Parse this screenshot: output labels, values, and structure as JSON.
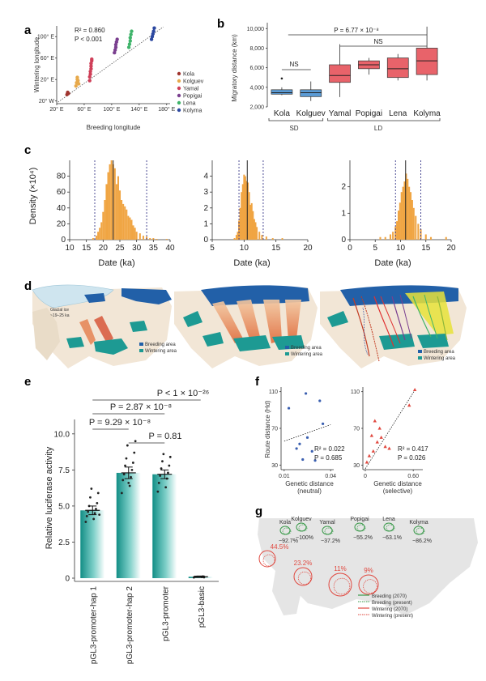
{
  "colors": {
    "Kola": "#a0342e",
    "Kolguev": "#e7a94b",
    "Yamal": "#cf3f58",
    "Popigai": "#7a3f8f",
    "Lena": "#3fb46a",
    "Kolyma": "#2c48a0",
    "sd_box": "#5b9bd5",
    "ld_box": "#e8636a",
    "hist": "#f0a543",
    "land": "#f2e6d6",
    "breed": "#2260a8",
    "winter": "#1d9a93",
    "ice": "#cfe5ef",
    "bar": "#1aa39a"
  },
  "chart_data": [
    {
      "id": "a",
      "label": "a",
      "type": "scatter",
      "xlabel": "Breeding longitude",
      "ylabel": "Wintering longitude",
      "xticks": [
        "20° E",
        "60° E",
        "100° E",
        "140° E",
        "180° E"
      ],
      "xlim": [
        20,
        185
      ],
      "yticks": [
        "20° W",
        "20° E",
        "60° E",
        "100° E"
      ],
      "ylim": [
        -25,
        120
      ],
      "r2_label": "R² = 0.860",
      "p_label": "P < 0.001",
      "legend": [
        "Kola",
        "Kolguev",
        "Yamal",
        "Popigai",
        "Lena",
        "Kolyma"
      ],
      "series": [
        {
          "name": "Kola",
          "x": [
            35,
            36,
            37
          ],
          "y": [
            -8,
            -4,
            -6
          ]
        },
        {
          "name": "Kolguev",
          "x": [
            48,
            49,
            50,
            50,
            51,
            52
          ],
          "y": [
            8,
            14,
            20,
            24,
            18,
            12
          ]
        },
        {
          "name": "Yamal",
          "x": [
            68,
            68,
            69,
            69,
            70,
            70,
            70,
            71,
            71
          ],
          "y": [
            18,
            25,
            30,
            35,
            40,
            45,
            50,
            55,
            58
          ]
        },
        {
          "name": "Popigai",
          "x": [
            104,
            105,
            106,
            106,
            107,
            108
          ],
          "y": [
            70,
            75,
            80,
            85,
            90,
            95
          ]
        },
        {
          "name": "Lena",
          "x": [
            125,
            126,
            127,
            127,
            128,
            129
          ],
          "y": [
            80,
            86,
            92,
            98,
            104,
            110
          ]
        },
        {
          "name": "Kolyma",
          "x": [
            158,
            159,
            160,
            161,
            162
          ],
          "y": [
            95,
            100,
            105,
            110,
            116
          ]
        }
      ]
    },
    {
      "id": "b",
      "label": "b",
      "type": "box",
      "ylabel": "Migratory distance (km)",
      "yticks": [
        "2,000",
        "4,000",
        "6,000",
        "8,000",
        "10,000"
      ],
      "ylim": [
        2000,
        10600
      ],
      "categories": [
        "Kola",
        "Kolguev",
        "Yamal",
        "Popigai",
        "Lena",
        "Kolyma"
      ],
      "groups": [
        {
          "name": "SD",
          "members": [
            "Kola",
            "Kolguev"
          ]
        },
        {
          "name": "LD",
          "members": [
            "Yamal",
            "Popigai",
            "Lena",
            "Kolyma"
          ]
        }
      ],
      "boxes": [
        {
          "name": "Kola",
          "min": 3200,
          "q1": 3300,
          "median": 3450,
          "q3": 3750,
          "max": 4000,
          "outliers": [
            4900
          ]
        },
        {
          "name": "Kolguev",
          "min": 2600,
          "q1": 3050,
          "median": 3450,
          "q3": 3750,
          "max": 4600,
          "outliers": []
        },
        {
          "name": "Yamal",
          "min": 3000,
          "q1": 4500,
          "median": 5200,
          "q3": 6300,
          "max": 8400,
          "outliers": []
        },
        {
          "name": "Popigai",
          "min": 5300,
          "q1": 5900,
          "median": 6300,
          "q3": 6700,
          "max": 7000,
          "outliers": []
        },
        {
          "name": "Lena",
          "min": 4700,
          "q1": 5000,
          "median": 5900,
          "q3": 7000,
          "max": 7400,
          "outliers": []
        },
        {
          "name": "Kolyma",
          "min": 4700,
          "q1": 5300,
          "median": 6700,
          "q3": 8000,
          "max": 10200,
          "outliers": []
        }
      ],
      "annotations": [
        {
          "text": "P = 6.77 × 10⁻⁸"
        },
        {
          "text": "NS"
        },
        {
          "text": "NS"
        }
      ]
    },
    {
      "id": "c",
      "label": "c",
      "type": "histogram",
      "ylabel": "Density (×10⁴)",
      "panels": [
        {
          "xlabel": "Date (ka)",
          "xlim": [
            10,
            40
          ],
          "xticks": [
            "10",
            "15",
            "20",
            "25",
            "30",
            "35",
            "40"
          ],
          "ylim": [
            0,
            100
          ],
          "yticks": [
            "0",
            "20",
            "40",
            "60",
            "80"
          ],
          "mean": 23,
          "ci": [
            17.5,
            33
          ],
          "bins": [
            {
              "x": 17,
              "h": 2
            },
            {
              "x": 18,
              "h": 5
            },
            {
              "x": 18.5,
              "h": 10
            },
            {
              "x": 19,
              "h": 15
            },
            {
              "x": 19.5,
              "h": 22
            },
            {
              "x": 20,
              "h": 35
            },
            {
              "x": 20.5,
              "h": 50
            },
            {
              "x": 21,
              "h": 70
            },
            {
              "x": 21.5,
              "h": 85
            },
            {
              "x": 22,
              "h": 95
            },
            {
              "x": 22.5,
              "h": 100
            },
            {
              "x": 23,
              "h": 95
            },
            {
              "x": 23.5,
              "h": 90
            },
            {
              "x": 24,
              "h": 70
            },
            {
              "x": 24.5,
              "h": 80
            },
            {
              "x": 25,
              "h": 62
            },
            {
              "x": 25.5,
              "h": 50
            },
            {
              "x": 26,
              "h": 45
            },
            {
              "x": 26.5,
              "h": 42
            },
            {
              "x": 27,
              "h": 38
            },
            {
              "x": 27.5,
              "h": 30
            },
            {
              "x": 28,
              "h": 28
            },
            {
              "x": 28.5,
              "h": 25
            },
            {
              "x": 29,
              "h": 18
            },
            {
              "x": 29.5,
              "h": 15
            },
            {
              "x": 30,
              "h": 10
            },
            {
              "x": 31,
              "h": 8
            },
            {
              "x": 32,
              "h": 5
            },
            {
              "x": 33,
              "h": 4
            },
            {
              "x": 34,
              "h": 2
            },
            {
              "x": 35,
              "h": 2
            },
            {
              "x": 36,
              "h": 1
            },
            {
              "x": 39,
              "h": 1
            }
          ]
        },
        {
          "xlabel": "Date (ka)",
          "xlim": [
            5,
            20
          ],
          "xticks": [
            "5",
            "10",
            "15",
            "20"
          ],
          "ylim": [
            0,
            5
          ],
          "yticks": [
            "0",
            "1",
            "2",
            "3",
            "4"
          ],
          "mean": 10.5,
          "ci": [
            9.2,
            13
          ],
          "bins": [
            {
              "x": 8.5,
              "h": 0.1
            },
            {
              "x": 8.8,
              "h": 0.3
            },
            {
              "x": 9,
              "h": 0.5
            },
            {
              "x": 9.2,
              "h": 1.2
            },
            {
              "x": 9.4,
              "h": 2
            },
            {
              "x": 9.6,
              "h": 3
            },
            {
              "x": 9.8,
              "h": 3.5
            },
            {
              "x": 10,
              "h": 4.1
            },
            {
              "x": 10.2,
              "h": 4
            },
            {
              "x": 10.4,
              "h": 3.7
            },
            {
              "x": 10.6,
              "h": 3.6
            },
            {
              "x": 10.8,
              "h": 3
            },
            {
              "x": 11,
              "h": 2.2
            },
            {
              "x": 11.2,
              "h": 2.3
            },
            {
              "x": 11.4,
              "h": 1.8
            },
            {
              "x": 11.6,
              "h": 1.3
            },
            {
              "x": 11.8,
              "h": 1.1
            },
            {
              "x": 12,
              "h": 0.8
            },
            {
              "x": 12.4,
              "h": 0.5
            },
            {
              "x": 12.8,
              "h": 0.3
            },
            {
              "x": 13.5,
              "h": 0.2
            },
            {
              "x": 14.5,
              "h": 0.1
            },
            {
              "x": 16,
              "h": 0.1
            }
          ]
        },
        {
          "xlabel": "Date (ka)",
          "xlim": [
            0,
            20
          ],
          "xticks": [
            "0",
            "5",
            "10",
            "15",
            "20"
          ],
          "ylim": [
            0,
            3
          ],
          "yticks": [
            "0",
            "1",
            "2"
          ],
          "mean": 11,
          "ci": [
            9,
            14
          ],
          "bins": [
            {
              "x": 6,
              "h": 0.1
            },
            {
              "x": 7,
              "h": 0.1
            },
            {
              "x": 8,
              "h": 0.2
            },
            {
              "x": 8.5,
              "h": 0.3
            },
            {
              "x": 9,
              "h": 0.5
            },
            {
              "x": 9.3,
              "h": 0.7
            },
            {
              "x": 9.6,
              "h": 1.1
            },
            {
              "x": 9.9,
              "h": 1.4
            },
            {
              "x": 10.2,
              "h": 1.8
            },
            {
              "x": 10.5,
              "h": 2
            },
            {
              "x": 10.8,
              "h": 2.2
            },
            {
              "x": 11.1,
              "h": 2.5
            },
            {
              "x": 11.4,
              "h": 2.3
            },
            {
              "x": 11.7,
              "h": 2
            },
            {
              "x": 12,
              "h": 1.8
            },
            {
              "x": 12.3,
              "h": 1.5
            },
            {
              "x": 12.6,
              "h": 1.2
            },
            {
              "x": 13,
              "h": 0.9
            },
            {
              "x": 13.5,
              "h": 0.6
            },
            {
              "x": 14,
              "h": 0.4
            },
            {
              "x": 15,
              "h": 0.2
            },
            {
              "x": 16,
              "h": 0.1
            },
            {
              "x": 19,
              "h": 0.1
            }
          ]
        }
      ]
    },
    {
      "id": "e",
      "label": "e",
      "type": "bar",
      "ylabel": "Relative luciferase activity",
      "categories": [
        "pGL3-promoter-hap 1",
        "pGL3-promoter-hap 2",
        "pGL3-promoter",
        "pGL3-basic"
      ],
      "values": [
        4.7,
        7.3,
        7.2,
        0.1
      ],
      "errors": [
        0.3,
        0.4,
        0.3,
        0.05
      ],
      "ylim": [
        0,
        11
      ],
      "yticks": [
        "0",
        "2.5",
        "5.0",
        "7.5",
        "10.0"
      ],
      "points": [
        [
          3.9,
          4.1,
          4.3,
          4.5,
          4.6,
          4.8,
          5.0,
          5.2,
          5.6,
          5.9,
          6.2,
          4.4
        ],
        [
          5.9,
          6.4,
          6.8,
          7.0,
          7.2,
          7.5,
          7.8,
          8.0,
          8.3,
          8.7,
          9.2,
          9.5,
          6.6
        ],
        [
          6.0,
          6.3,
          6.6,
          6.9,
          7.1,
          7.3,
          7.6,
          7.8,
          8.1,
          8.4,
          8.6
        ],
        [
          0.05,
          0.08,
          0.1,
          0.12,
          0.1,
          0.06
        ]
      ],
      "annotations": [
        "P < 1 × 10⁻²⁶",
        "P = 2.87 × 10⁻⁸",
        "P = 9.29 × 10⁻⁸",
        "P = 0.81"
      ]
    },
    {
      "id": "f",
      "label": "f",
      "type": "scatter",
      "ylabel": "Route distance (Hd)",
      "panels": [
        {
          "xlabel": "Genetic distance",
          "xlabel2": "(neutral)",
          "xticks": [
            "0.01",
            "0.04"
          ],
          "xlim": [
            0.008,
            0.042
          ],
          "yticks": [
            "30",
            "70",
            "110"
          ],
          "ylim": [
            25,
            115
          ],
          "r2": "R² = 0.022",
          "p": "P = 0.685",
          "marker": "circle",
          "color": "#3a5fb0",
          "x": [
            0.013,
            0.018,
            0.02,
            0.022,
            0.024,
            0.025,
            0.028,
            0.03,
            0.033,
            0.035
          ],
          "y": [
            92,
            48,
            53,
            36,
            108,
            60,
            45,
            35,
            100,
            75
          ],
          "fit": [
            [
              0.01,
              56
            ],
            [
              0.04,
              74
            ]
          ]
        },
        {
          "xlabel": "Genetic distance",
          "xlabel2": "(selective)",
          "xticks": [
            "0",
            "0.60"
          ],
          "xlim": [
            -0.03,
            0.72
          ],
          "yticks": [
            "30",
            "70",
            "110"
          ],
          "ylim": [
            25,
            115
          ],
          "r2": "R² = 0.417",
          "p": "P = 0.026",
          "marker": "triangle",
          "color": "#e0483f",
          "x": [
            0.02,
            0.05,
            0.08,
            0.1,
            0.12,
            0.15,
            0.18,
            0.2,
            0.25,
            0.3,
            0.55,
            0.62
          ],
          "y": [
            33,
            40,
            62,
            45,
            78,
            55,
            70,
            60,
            50,
            48,
            95,
            112
          ],
          "fit": [
            [
              0.0,
              26
            ],
            [
              0.63,
              113
            ]
          ]
        }
      ]
    }
  ],
  "map_d": {
    "label": "d",
    "glacial_text": "Glacial ice",
    "glacial_text2": "~19–25 ka",
    "breeding": "Breeding area",
    "wintering": "Wintering area"
  },
  "map_g": {
    "label": "g",
    "breeding_sites": [
      {
        "name": "Kola",
        "pct": "−92.7%"
      },
      {
        "name": "Kolguev",
        "pct": "−100%"
      },
      {
        "name": "Yamal",
        "pct": "−37.2%"
      },
      {
        "name": "Popigai",
        "pct": "−55.2%"
      },
      {
        "name": "Lena",
        "pct": "−63.1%"
      },
      {
        "name": "Kolyma",
        "pct": "−86.2%"
      }
    ],
    "wintering_sites": [
      {
        "pct": "44.5%"
      },
      {
        "pct": "23.2%"
      },
      {
        "pct": "11%"
      },
      {
        "pct": "9%"
      }
    ],
    "legend": [
      "Breeding (2070)",
      "Breeding (present)",
      "Wintering (2070)",
      "Wintering (present)"
    ]
  }
}
